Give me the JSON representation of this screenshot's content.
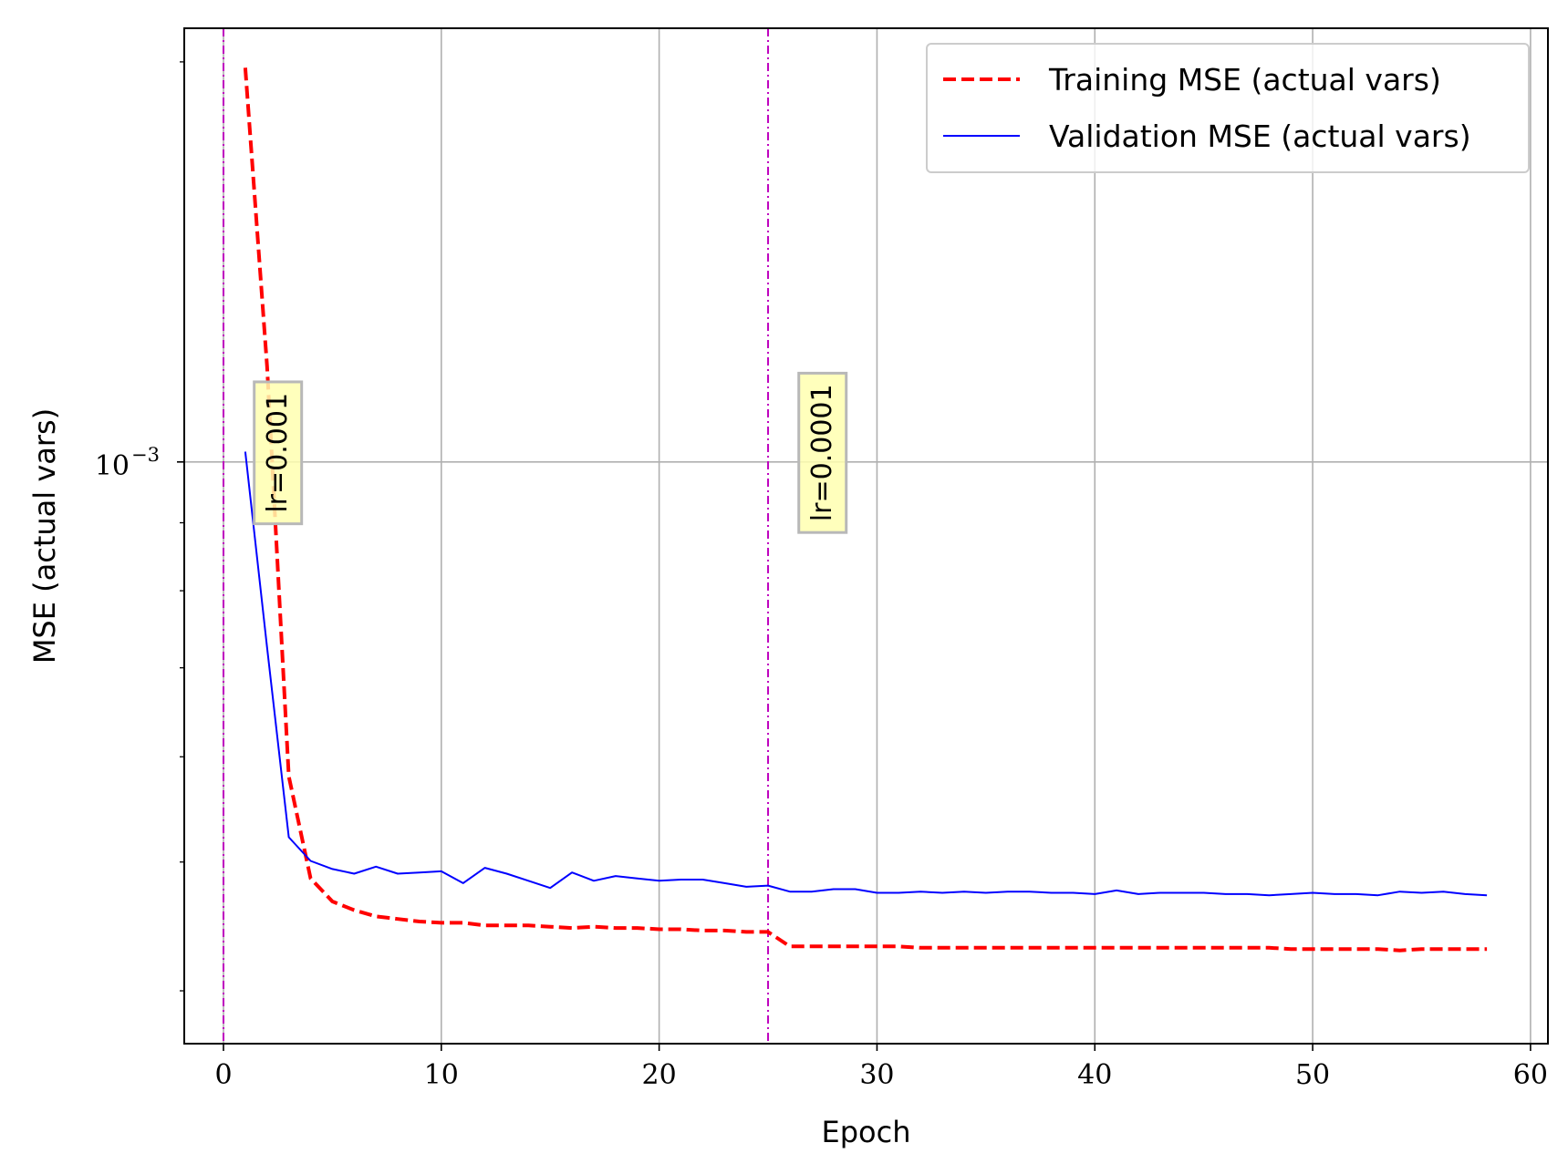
{
  "chart_data": {
    "type": "line",
    "xlabel": "Epoch",
    "ylabel": "MSE (actual vars)",
    "xlim": [
      -1.8,
      60.8
    ],
    "ylim": [
      0.000365,
      0.00212
    ],
    "yscale": "log",
    "grid": true,
    "legend_position": "top-right",
    "x_ticks": [
      0,
      10,
      20,
      30,
      40,
      50,
      60
    ],
    "x_tick_labels": [
      "0",
      "10",
      "20",
      "30",
      "40",
      "50",
      "60"
    ],
    "y_major_tick": {
      "value": 0.001,
      "base": "10",
      "exponent": "−3"
    },
    "y_minor_ticks": [
      0.0004,
      0.0005,
      0.0006,
      0.0007,
      0.0008,
      0.0009,
      0.002
    ],
    "series": [
      {
        "name": "Training MSE (actual vars)",
        "color": "#ff0000",
        "style": "dashed",
        "x": [
          1,
          2,
          3,
          4,
          5,
          6,
          7,
          8,
          9,
          10,
          11,
          12,
          13,
          14,
          15,
          16,
          17,
          18,
          19,
          20,
          21,
          22,
          23,
          24,
          25,
          26,
          27,
          28,
          29,
          30,
          31,
          32,
          33,
          34,
          35,
          36,
          37,
          38,
          39,
          40,
          41,
          42,
          43,
          44,
          45,
          46,
          47,
          48,
          49,
          50,
          51,
          52,
          53,
          54,
          55,
          56,
          57,
          58
        ],
        "values": [
          0.00198,
          0.00118,
          0.00058,
          0.000486,
          0.000467,
          0.00046,
          0.000455,
          0.000453,
          0.000451,
          0.00045,
          0.00045,
          0.000448,
          0.000448,
          0.000448,
          0.000447,
          0.000446,
          0.000447,
          0.000446,
          0.000446,
          0.000445,
          0.000445,
          0.000444,
          0.000444,
          0.000443,
          0.000443,
          0.000432,
          0.000432,
          0.000432,
          0.000432,
          0.000432,
          0.000432,
          0.000431,
          0.000431,
          0.000431,
          0.000431,
          0.000431,
          0.000431,
          0.000431,
          0.000431,
          0.000431,
          0.000431,
          0.000431,
          0.000431,
          0.000431,
          0.000431,
          0.000431,
          0.000431,
          0.000431,
          0.00043,
          0.00043,
          0.00043,
          0.00043,
          0.00043,
          0.000429,
          0.00043,
          0.00043,
          0.00043,
          0.00043
        ]
      },
      {
        "name": "Validation MSE (actual vars)",
        "color": "#0000ff",
        "style": "solid",
        "x": [
          1,
          2,
          3,
          4,
          5,
          6,
          7,
          8,
          9,
          10,
          11,
          12,
          13,
          14,
          15,
          16,
          17,
          18,
          19,
          20,
          21,
          22,
          23,
          24,
          25,
          26,
          27,
          28,
          29,
          30,
          31,
          32,
          33,
          34,
          35,
          36,
          37,
          38,
          39,
          40,
          41,
          42,
          43,
          44,
          45,
          46,
          47,
          48,
          49,
          50,
          51,
          52,
          53,
          54,
          55,
          56,
          57,
          58
        ],
        "values": [
          0.001018,
          0.000725,
          0.000522,
          0.000501,
          0.000494,
          0.00049,
          0.000496,
          0.00049,
          0.000491,
          0.000492,
          0.000482,
          0.000495,
          0.00049,
          0.000484,
          0.000478,
          0.000491,
          0.000484,
          0.000488,
          0.000486,
          0.000484,
          0.000485,
          0.000485,
          0.000482,
          0.000479,
          0.00048,
          0.000475,
          0.000475,
          0.000477,
          0.000477,
          0.000474,
          0.000474,
          0.000475,
          0.000474,
          0.000475,
          0.000474,
          0.000475,
          0.000475,
          0.000474,
          0.000474,
          0.000473,
          0.000476,
          0.000473,
          0.000474,
          0.000474,
          0.000474,
          0.000473,
          0.000473,
          0.000472,
          0.000473,
          0.000474,
          0.000473,
          0.000473,
          0.000472,
          0.000475,
          0.000474,
          0.000475,
          0.000473,
          0.000472
        ]
      }
    ],
    "vlines": [
      {
        "x": 0,
        "color": "#bf00bf",
        "style": "dashdot"
      },
      {
        "x": 25,
        "color": "#bf00bf",
        "style": "dashdot"
      }
    ],
    "annotations": [
      {
        "text": "lr=0.001",
        "x": 2.5,
        "y": 0.001,
        "rotation": -90,
        "background": "#ffffb0"
      },
      {
        "text": "lr=0.0001",
        "x": 27.5,
        "y": 0.001,
        "rotation": -90,
        "background": "#ffffb0"
      }
    ]
  }
}
